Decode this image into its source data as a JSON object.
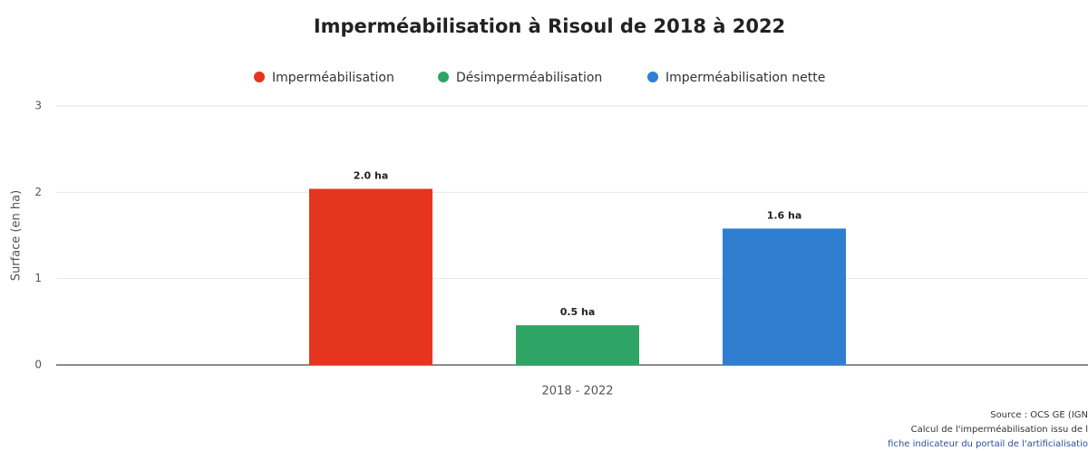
{
  "chart_data": {
    "type": "bar",
    "title": "Imperméabilisation à Risoul de 2018 à 2022",
    "y_label": "Surface (en ha)",
    "categories": [
      "2018 - 2022"
    ],
    "series": [
      {
        "name": "Imperméabilisation",
        "color": "#e5341f",
        "values": [
          2.04
        ],
        "value_labels": [
          "2.0 ha"
        ]
      },
      {
        "name": "Désimperméabilisation",
        "color": "#2ea564",
        "values": [
          0.46
        ],
        "value_labels": [
          "0.5 ha"
        ]
      },
      {
        "name": "Imperméabilisation nette",
        "color": "#2f7ed0",
        "values": [
          1.58
        ],
        "value_labels": [
          "1.6 ha"
        ]
      }
    ],
    "ylim": [
      0,
      3
    ],
    "yticks": [
      0,
      1,
      2,
      3
    ],
    "grid": true,
    "legend": "top",
    "credits": [
      "Source : OCS GE (IGN",
      "Calcul de l'imperméabilisation issu de l",
      "fiche indicateur du portail de l'artificialisatio"
    ]
  }
}
